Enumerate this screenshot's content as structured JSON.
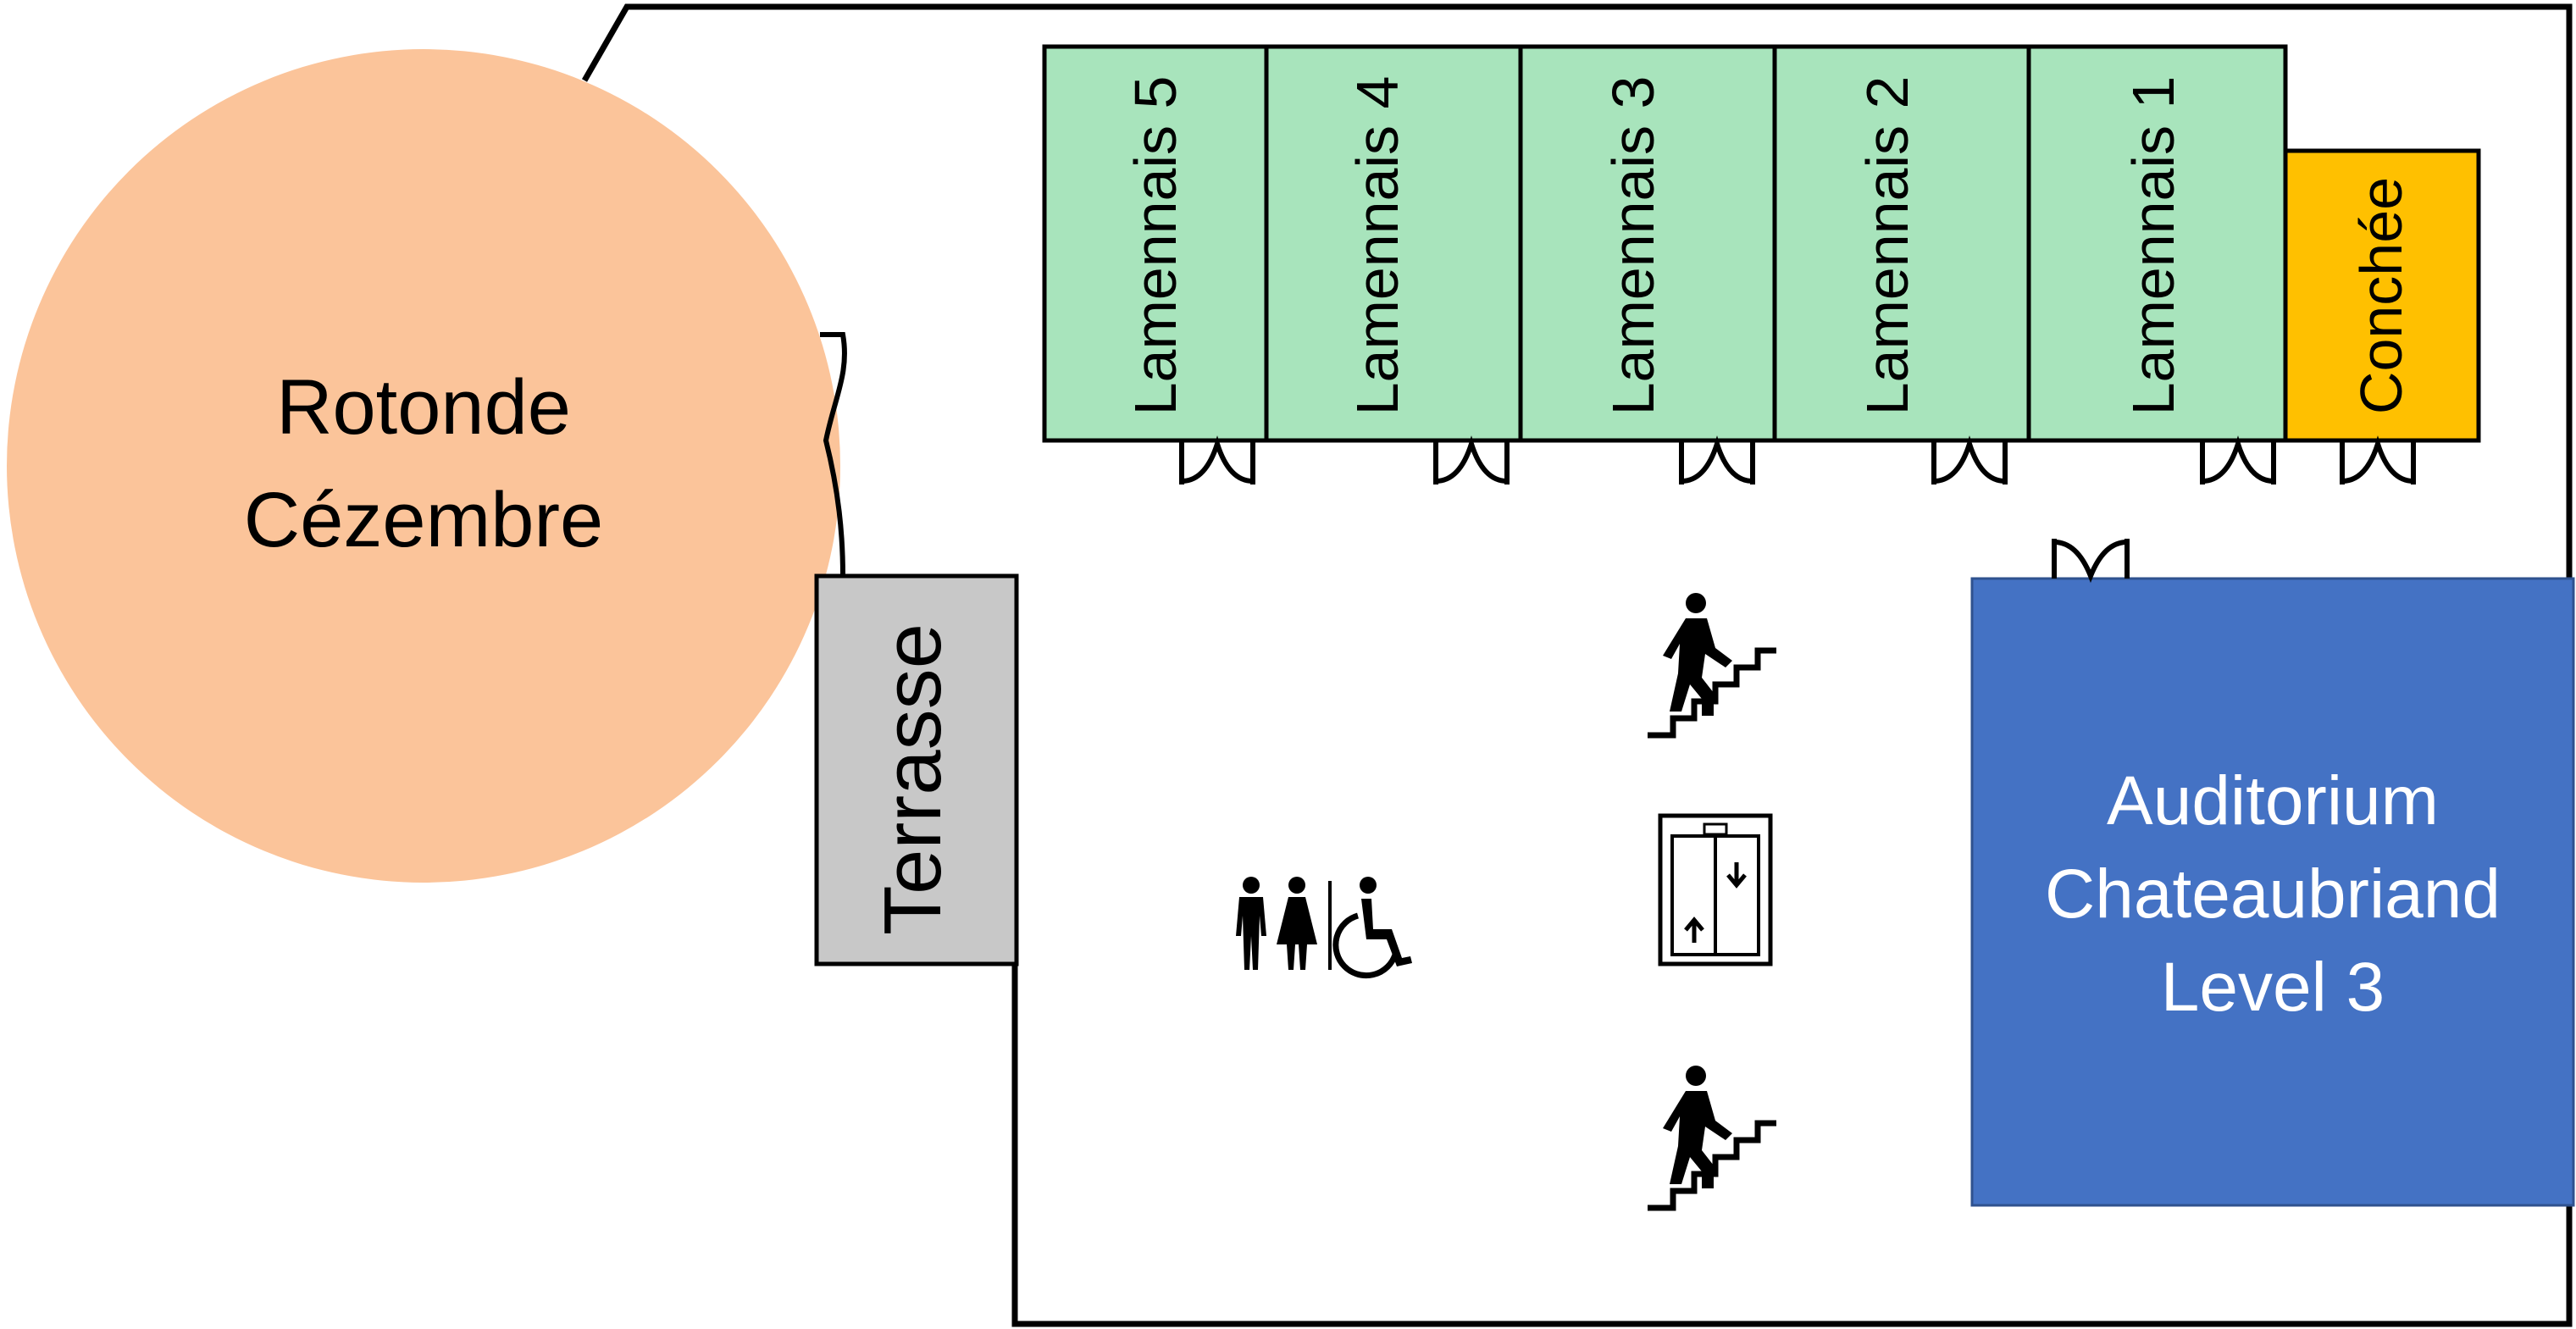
{
  "title": "",
  "colors": {
    "background": "#ffffff",
    "wall": "#000000",
    "rotonde": "#FBC49A",
    "lamennais": "#A8E4BC",
    "conchee": "#FFC000",
    "terrasse": "#C8C8C8",
    "auditorium": "#4472C4",
    "auditorium_text": "#ffffff"
  },
  "rooms": {
    "rotonde": {
      "line1": "Rotonde",
      "line2": "Cézembre"
    },
    "terrasse": {
      "label": "Terrasse"
    },
    "lamennais": [
      {
        "label": "Lamennais 5"
      },
      {
        "label": "Lamennais 4"
      },
      {
        "label": "Lamennais 3"
      },
      {
        "label": "Lamennais 2"
      },
      {
        "label": "Lamennais 1"
      }
    ],
    "conchee": {
      "label": "Conchée"
    },
    "auditorium": {
      "line1": "Auditorium",
      "line2": "Chateaubriand",
      "line3": "Level 3"
    }
  },
  "icons": {
    "restrooms": "restroom-accessible-icon",
    "stairs": "stairs-icon",
    "elevator": "elevator-icon",
    "door": "double-door-icon"
  }
}
